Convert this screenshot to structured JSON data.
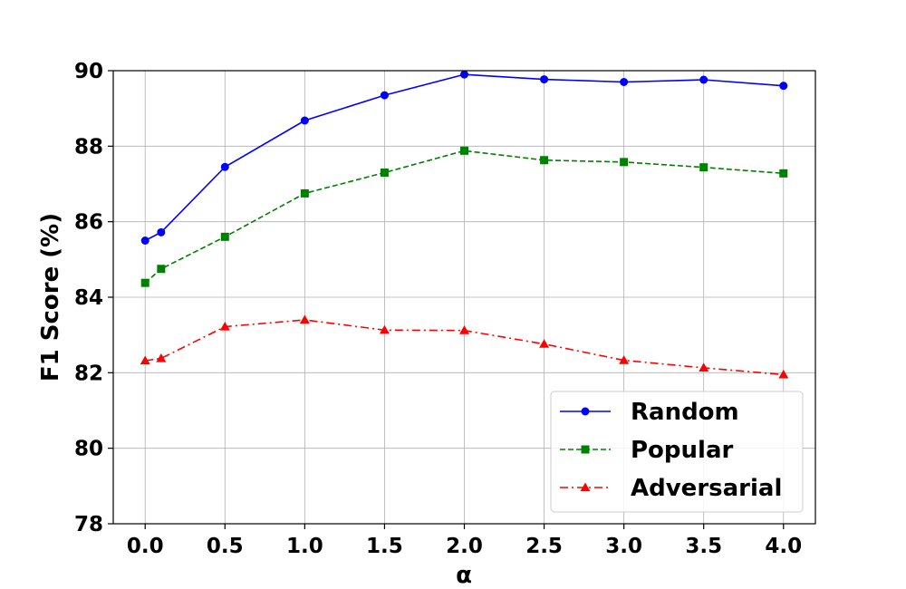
{
  "chart_data": {
    "type": "line",
    "title": "",
    "xlabel": "α",
    "ylabel": "F1 Score (%)",
    "x": [
      0.0,
      0.1,
      0.5,
      1.0,
      1.5,
      2.0,
      2.5,
      3.0,
      3.5,
      4.0
    ],
    "xlim": [
      -0.2,
      4.2
    ],
    "ylim": [
      78,
      90
    ],
    "xticks": [
      0.0,
      0.5,
      1.0,
      1.5,
      2.0,
      2.5,
      3.0,
      3.5,
      4.0
    ],
    "xtick_labels": [
      "0.0",
      "0.5",
      "1.0",
      "1.5",
      "2.0",
      "2.5",
      "3.0",
      "3.5",
      "4.0"
    ],
    "yticks": [
      78,
      80,
      82,
      84,
      86,
      88,
      90
    ],
    "ytick_labels": [
      "78",
      "80",
      "82",
      "84",
      "86",
      "88",
      "90"
    ],
    "grid": true,
    "legend_position": "bottom-right",
    "series": [
      {
        "name": "Random",
        "color": "#0000ff",
        "marker": "circle",
        "linestyle": "solid",
        "values": [
          85.5,
          85.72,
          87.45,
          88.68,
          89.35,
          89.9,
          89.77,
          89.7,
          89.76,
          89.6
        ]
      },
      {
        "name": "Popular",
        "color": "#008000",
        "marker": "square",
        "linestyle": "dashed",
        "values": [
          84.38,
          84.75,
          85.6,
          86.75,
          87.3,
          87.88,
          87.63,
          87.58,
          87.44,
          87.28
        ]
      },
      {
        "name": "Adversarial",
        "color": "#ff0000",
        "marker": "triangle",
        "linestyle": "dashdot",
        "values": [
          82.32,
          82.38,
          83.22,
          83.4,
          83.13,
          83.12,
          82.76,
          82.33,
          82.13,
          81.95
        ]
      }
    ]
  }
}
